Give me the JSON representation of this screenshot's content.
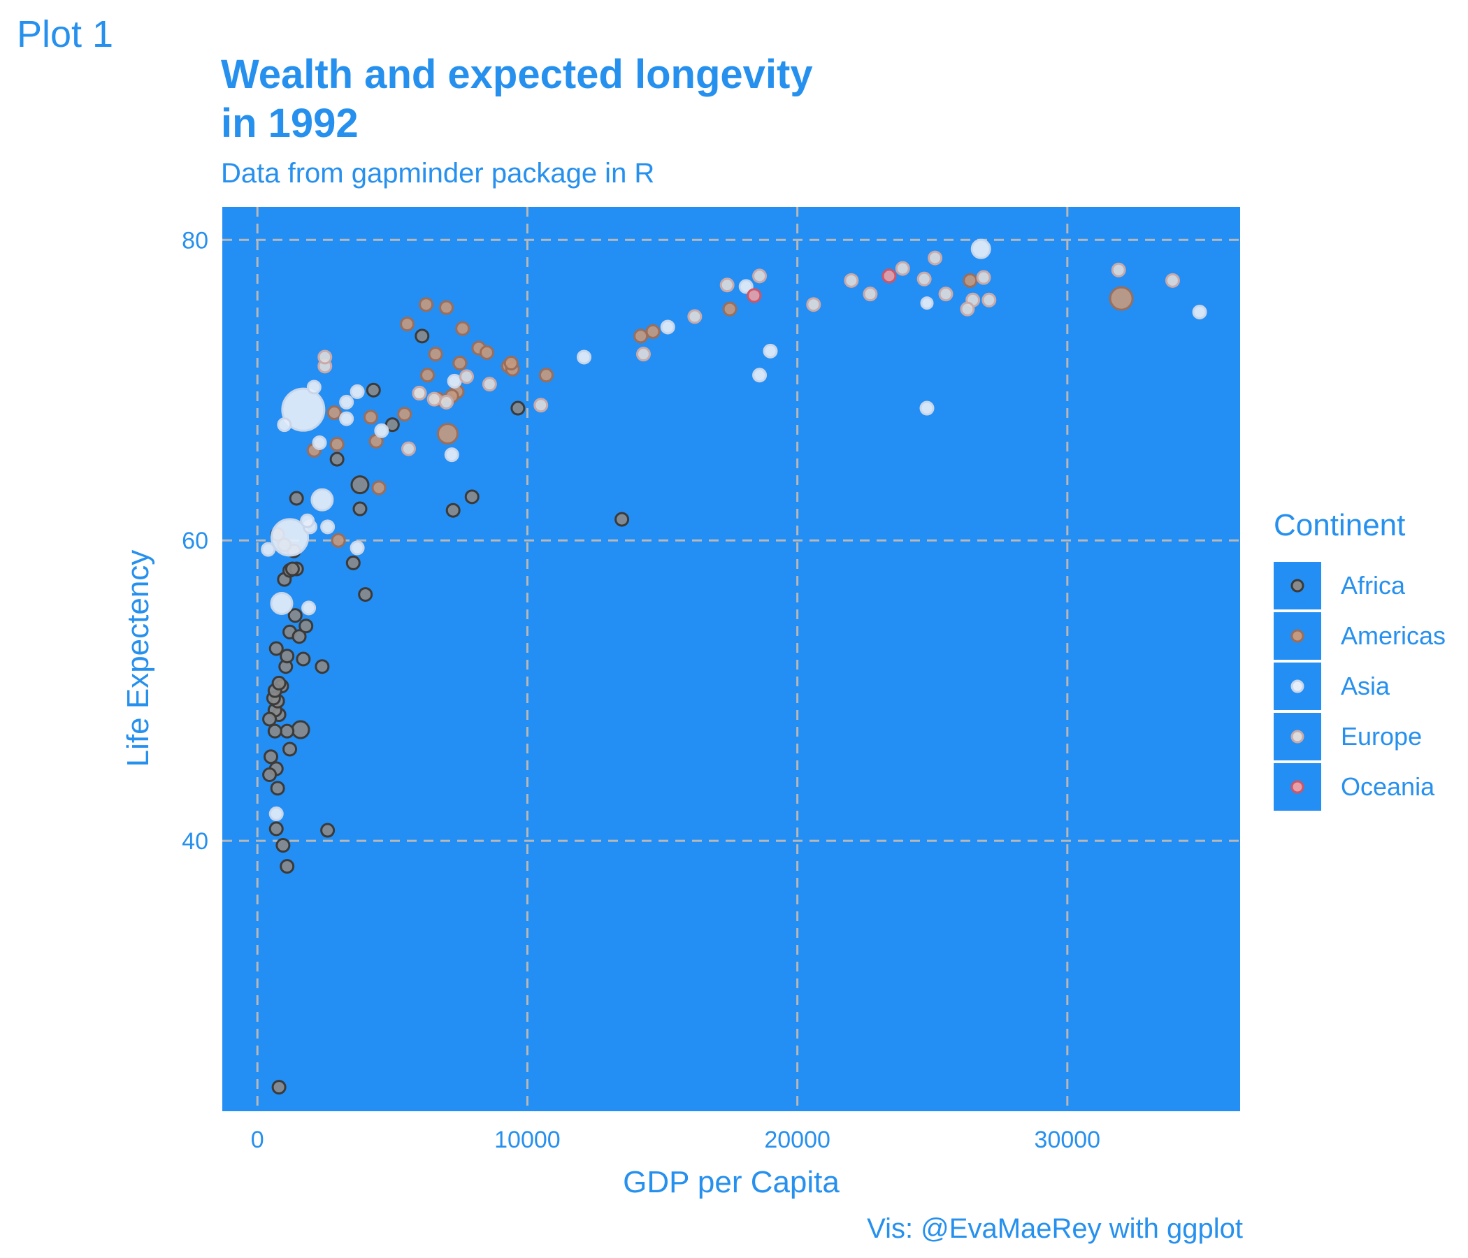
{
  "plot_tag": "Plot 1",
  "colors": {
    "panel_background": "#238EF3",
    "text": "#2690EE",
    "grid": "#B8B8B8",
    "africa": "#8A8A8A",
    "americas": "#C49A80",
    "asia": "#E6EEFA",
    "europe": "#DCDCDC",
    "oceania": "#E8A0A8"
  },
  "chart_data": {
    "type": "scatter",
    "title": "Wealth and expected longevity\n in 1992",
    "subtitle": "Data from gapminder package in R",
    "caption": "Vis: @EvaMaeRey with ggplot",
    "xlabel": "GDP per Capita",
    "ylabel": "Life Expectency",
    "xlim": [
      -1300,
      36400
    ],
    "ylim": [
      22.0,
      82.2
    ],
    "x_ticks": [
      0,
      10000,
      20000,
      30000
    ],
    "y_ticks": [
      40,
      60,
      80
    ],
    "grid": true,
    "grid_style": "dashed",
    "legend": {
      "title": "Continent",
      "position": "right",
      "entries": [
        "Africa",
        "Americas",
        "Asia",
        "Europe",
        "Oceania"
      ]
    },
    "point_size": "population",
    "series": [
      {
        "name": "Africa",
        "points": [
          [
            2600,
            40.7
          ],
          [
            1100,
            38.3
          ],
          [
            950,
            39.7
          ],
          [
            700,
            40.8
          ],
          [
            800,
            23.6
          ],
          [
            1200,
            46.1
          ],
          [
            750,
            43.5
          ],
          [
            700,
            44.8
          ],
          [
            500,
            45.6
          ],
          [
            450,
            44.4
          ],
          [
            1600,
            47.4
          ],
          [
            1100,
            47.3
          ],
          [
            650,
            47.3
          ],
          [
            800,
            48.4
          ],
          [
            650,
            48.7
          ],
          [
            450,
            48.1
          ],
          [
            750,
            49.3
          ],
          [
            600,
            49.5
          ],
          [
            900,
            50.3
          ],
          [
            650,
            50.0
          ],
          [
            800,
            50.5
          ],
          [
            1050,
            51.6
          ],
          [
            2400,
            51.6
          ],
          [
            1700,
            52.1
          ],
          [
            1100,
            52.3
          ],
          [
            700,
            52.8
          ],
          [
            1200,
            53.9
          ],
          [
            1550,
            53.6
          ],
          [
            1800,
            54.3
          ],
          [
            1400,
            55.0
          ],
          [
            4000,
            56.4
          ],
          [
            1000,
            57.4
          ],
          [
            1200,
            58.0
          ],
          [
            1450,
            58.1
          ],
          [
            3550,
            58.5
          ],
          [
            1350,
            59.3
          ],
          [
            1000,
            59.7
          ],
          [
            750,
            60.4
          ],
          [
            7250,
            62.0
          ],
          [
            3800,
            62.1
          ],
          [
            1450,
            62.8
          ],
          [
            7950,
            62.9
          ],
          [
            3800,
            63.7
          ],
          [
            2950,
            65.4
          ],
          [
            5000,
            67.7
          ],
          [
            9650,
            68.8
          ],
          [
            4300,
            70.0
          ],
          [
            6100,
            73.6
          ],
          [
            13500,
            61.4
          ],
          [
            1300,
            58.1
          ]
        ]
      },
      {
        "name": "Americas",
        "points": [
          [
            3000,
            60.0
          ],
          [
            4500,
            63.5
          ],
          [
            2100,
            66.0
          ],
          [
            2950,
            66.4
          ],
          [
            4400,
            66.6
          ],
          [
            4200,
            68.2
          ],
          [
            2850,
            68.5
          ],
          [
            5450,
            68.4
          ],
          [
            7050,
            67.1
          ],
          [
            6700,
            69.4
          ],
          [
            7400,
            69.9
          ],
          [
            7200,
            69.6
          ],
          [
            9300,
            71.6
          ],
          [
            9450,
            71.4
          ],
          [
            10700,
            71.0
          ],
          [
            7500,
            71.8
          ],
          [
            6300,
            71.0
          ],
          [
            6600,
            72.4
          ],
          [
            8200,
            72.8
          ],
          [
            8500,
            72.5
          ],
          [
            5550,
            74.4
          ],
          [
            7600,
            74.1
          ],
          [
            6250,
            75.7
          ],
          [
            7000,
            75.5
          ],
          [
            14200,
            73.6
          ],
          [
            14650,
            73.9
          ],
          [
            17500,
            75.4
          ],
          [
            26400,
            77.3
          ],
          [
            32000,
            76.1
          ],
          [
            9400,
            71.8
          ]
        ]
      },
      {
        "name": "Asia",
        "points": [
          [
            400,
            59.4
          ],
          [
            900,
            55.8
          ],
          [
            1900,
            55.5
          ],
          [
            700,
            41.8
          ],
          [
            1200,
            60.2
          ],
          [
            1700,
            68.7
          ],
          [
            1000,
            67.7
          ],
          [
            2300,
            66.5
          ],
          [
            3300,
            68.1
          ],
          [
            2100,
            70.2
          ],
          [
            3700,
            69.9
          ],
          [
            3300,
            69.2
          ],
          [
            2600,
            60.9
          ],
          [
            2400,
            62.7
          ],
          [
            1950,
            60.9
          ],
          [
            3700,
            59.5
          ],
          [
            7300,
            70.6
          ],
          [
            7200,
            65.7
          ],
          [
            4600,
            67.3
          ],
          [
            12100,
            72.2
          ],
          [
            15200,
            74.2
          ],
          [
            18600,
            71.0
          ],
          [
            19000,
            72.6
          ],
          [
            18100,
            76.9
          ],
          [
            24800,
            68.8
          ],
          [
            24800,
            75.8
          ],
          [
            26800,
            79.4
          ],
          [
            34900,
            75.2
          ],
          [
            6000,
            69.8
          ],
          [
            1850,
            61.3
          ]
        ]
      },
      {
        "name": "Europe",
        "points": [
          [
            2500,
            71.6
          ],
          [
            2500,
            72.2
          ],
          [
            5600,
            66.1
          ],
          [
            6000,
            69.8
          ],
          [
            6550,
            69.4
          ],
          [
            7000,
            69.2
          ],
          [
            7750,
            70.9
          ],
          [
            10500,
            69.0
          ],
          [
            16200,
            74.9
          ],
          [
            14300,
            72.4
          ],
          [
            17400,
            77.0
          ],
          [
            18600,
            77.6
          ],
          [
            20600,
            75.7
          ],
          [
            22000,
            77.3
          ],
          [
            22700,
            76.4
          ],
          [
            23900,
            78.1
          ],
          [
            24700,
            77.4
          ],
          [
            25100,
            78.8
          ],
          [
            25500,
            76.4
          ],
          [
            26500,
            76.0
          ],
          [
            26300,
            75.4
          ],
          [
            26900,
            77.5
          ],
          [
            27100,
            76.0
          ],
          [
            31900,
            78.0
          ],
          [
            33900,
            77.3
          ],
          [
            8600,
            70.4
          ]
        ]
      },
      {
        "name": "Oceania",
        "points": [
          [
            18400,
            76.3
          ],
          [
            23400,
            77.6
          ]
        ]
      }
    ]
  }
}
